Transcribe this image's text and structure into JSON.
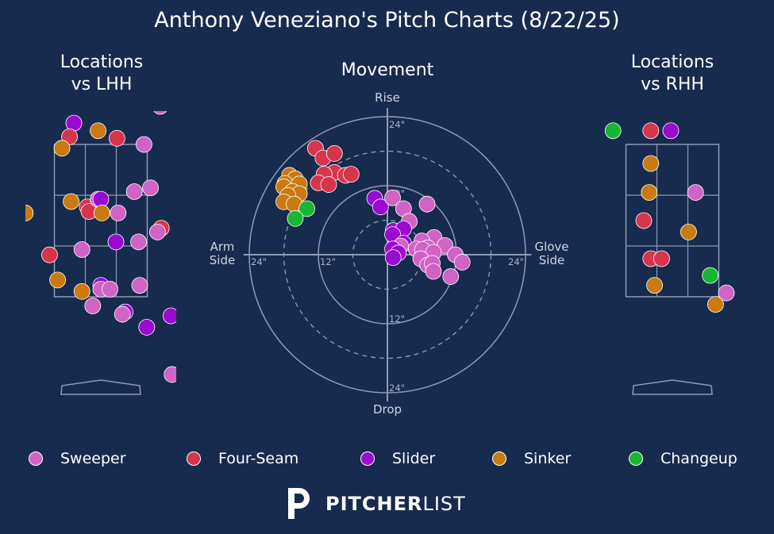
{
  "title": "Anthony Veneziano's Pitch Charts (8/22/25)",
  "colors": {
    "background": "#172b4e",
    "Sweeper": "#d063c4",
    "Four-Seam": "#d7344e",
    "Slider": "#9a0ad1",
    "Sinker": "#c97a10",
    "Changeup": "#17b634"
  },
  "legend": [
    "Sweeper",
    "Four-Seam",
    "Slider",
    "Sinker",
    "Changeup"
  ],
  "logo": {
    "bold": "PITCHER",
    "light": "LIST"
  },
  "chart_data": [
    {
      "type": "scatter",
      "title": "Locations\nvs LHH",
      "description_of_units": "plate x / plate z estimated, feet",
      "points": [
        {
          "pitch": "Sinker",
          "x": -0.72,
          "z": 4.08
        },
        {
          "pitch": "Sweeper",
          "x": -0.69,
          "z": 4.05
        },
        {
          "pitch": "Slider",
          "x": -0.5,
          "z": 3.78
        },
        {
          "pitch": "Four-Seam",
          "x": -0.58,
          "z": 3.6
        },
        {
          "pitch": "Sinker",
          "x": -0.72,
          "z": 3.45
        },
        {
          "pitch": "Sinker",
          "x": -0.05,
          "z": 3.68
        },
        {
          "pitch": "Four-Seam",
          "x": 0.3,
          "z": 3.58
        },
        {
          "pitch": "Sweeper",
          "x": 1.1,
          "z": 4.0
        },
        {
          "pitch": "Sweeper",
          "x": 0.8,
          "z": 3.5
        },
        {
          "pitch": "Sweeper",
          "x": 0.92,
          "z": 2.93
        },
        {
          "pitch": "Sweeper",
          "x": 0.62,
          "z": 2.88
        },
        {
          "pitch": "Sinker",
          "x": -1.4,
          "z": 2.6
        },
        {
          "pitch": "Sinker",
          "x": -0.55,
          "z": 2.75
        },
        {
          "pitch": "Four-Seam",
          "x": -0.25,
          "z": 2.68
        },
        {
          "pitch": "Four-Seam",
          "x": -0.22,
          "z": 2.62
        },
        {
          "pitch": "Sweeper",
          "x": -0.05,
          "z": 2.78
        },
        {
          "pitch": "Slider",
          "x": 0.0,
          "z": 2.78
        },
        {
          "pitch": "Sinker",
          "x": 0.02,
          "z": 2.6
        },
        {
          "pitch": "Sweeper",
          "x": 0.32,
          "z": 2.6
        },
        {
          "pitch": "Four-Seam",
          "x": 1.12,
          "z": 2.4
        },
        {
          "pitch": "Sweeper",
          "x": 1.05,
          "z": 2.35
        },
        {
          "pitch": "Slider",
          "x": 0.28,
          "z": 2.22
        },
        {
          "pitch": "Sweeper",
          "x": 0.7,
          "z": 2.22
        },
        {
          "pitch": "Sweeper",
          "x": -0.35,
          "z": 2.12
        },
        {
          "pitch": "Four-Seam",
          "x": -0.95,
          "z": 2.05
        },
        {
          "pitch": "Sinker",
          "x": -0.8,
          "z": 1.72
        },
        {
          "pitch": "Slider",
          "x": 0.0,
          "z": 1.65
        },
        {
          "pitch": "Sweeper",
          "x": 0.0,
          "z": 1.6
        },
        {
          "pitch": "Sweeper",
          "x": 0.17,
          "z": 1.6
        },
        {
          "pitch": "Sweeper",
          "x": 0.72,
          "z": 1.65
        },
        {
          "pitch": "Sinker",
          "x": -0.35,
          "z": 1.57
        },
        {
          "pitch": "Sweeper",
          "x": -0.15,
          "z": 1.38
        },
        {
          "pitch": "Slider",
          "x": 0.45,
          "z": 1.3
        },
        {
          "pitch": "Sweeper",
          "x": 0.4,
          "z": 1.27
        },
        {
          "pitch": "Slider",
          "x": 0.85,
          "z": 1.1
        },
        {
          "pitch": "Slider",
          "x": 1.3,
          "z": 1.25
        },
        {
          "pitch": "Sweeper",
          "x": 1.32,
          "z": 0.48
        }
      ]
    },
    {
      "type": "scatter",
      "title": "Movement",
      "xlabel": "Arm\nSide",
      "xlabel_right": "Glove\nSide",
      "ylabel_top": "Rise",
      "ylabel_bottom": "Drop",
      "rings": [
        "12\"",
        "24\""
      ],
      "description_of_units": "horizontal / induced vertical break, inches (glove side positive)",
      "points": [
        {
          "pitch": "Four-Seam",
          "hb": -12.5,
          "ivb": 18.5
        },
        {
          "pitch": "Four-Seam",
          "hb": -11.2,
          "ivb": 16.8
        },
        {
          "pitch": "Four-Seam",
          "hb": -9.2,
          "ivb": 17.6
        },
        {
          "pitch": "Four-Seam",
          "hb": -9.2,
          "ivb": 14.3
        },
        {
          "pitch": "Four-Seam",
          "hb": -7.3,
          "ivb": 13.8
        },
        {
          "pitch": "Four-Seam",
          "hb": -6.3,
          "ivb": 14.0
        },
        {
          "pitch": "Four-Seam",
          "hb": -11.0,
          "ivb": 14.0
        },
        {
          "pitch": "Four-Seam",
          "hb": -12.0,
          "ivb": 12.5
        },
        {
          "pitch": "Four-Seam",
          "hb": -10.2,
          "ivb": 12.2
        },
        {
          "pitch": "Sinker",
          "hb": -17.0,
          "ivb": 13.8
        },
        {
          "pitch": "Sinker",
          "hb": -16.0,
          "ivb": 13.2
        },
        {
          "pitch": "Sinker",
          "hb": -17.8,
          "ivb": 12.4
        },
        {
          "pitch": "Sinker",
          "hb": -15.3,
          "ivb": 12.3
        },
        {
          "pitch": "Sinker",
          "hb": -18.0,
          "ivb": 11.8
        },
        {
          "pitch": "Sinker",
          "hb": -16.5,
          "ivb": 11.0
        },
        {
          "pitch": "Sinker",
          "hb": -15.3,
          "ivb": 10.6
        },
        {
          "pitch": "Sinker",
          "hb": -17.3,
          "ivb": 10.3
        },
        {
          "pitch": "Sinker",
          "hb": -18.0,
          "ivb": 9.2
        },
        {
          "pitch": "Sinker",
          "hb": -16.2,
          "ivb": 8.8
        },
        {
          "pitch": "Changeup",
          "hb": -14.0,
          "ivb": 8.0
        },
        {
          "pitch": "Changeup",
          "hb": -16.0,
          "ivb": 6.3
        },
        {
          "pitch": "Slider",
          "hb": -2.2,
          "ivb": 9.8
        },
        {
          "pitch": "Slider",
          "hb": -1.2,
          "ivb": 8.3
        },
        {
          "pitch": "Sweeper",
          "hb": 0.9,
          "ivb": 9.9
        },
        {
          "pitch": "Sweeper",
          "hb": 2.8,
          "ivb": 8.0
        },
        {
          "pitch": "Sweeper",
          "hb": 6.9,
          "ivb": 8.8
        },
        {
          "pitch": "Sweeper",
          "hb": 3.8,
          "ivb": 5.8
        },
        {
          "pitch": "Slider",
          "hb": 1.0,
          "ivb": 4.2
        },
        {
          "pitch": "Slider",
          "hb": 2.8,
          "ivb": 4.5
        },
        {
          "pitch": "Slider",
          "hb": 0.9,
          "ivb": 3.5
        },
        {
          "pitch": "Slider",
          "hb": 2.8,
          "ivb": 2.0
        },
        {
          "pitch": "Sweeper",
          "hb": 2.3,
          "ivb": 1.5
        },
        {
          "pitch": "Slider",
          "hb": 0.9,
          "ivb": 1.0
        },
        {
          "pitch": "Slider",
          "hb": 1.9,
          "ivb": 0.3
        },
        {
          "pitch": "Slider",
          "hb": 1.0,
          "ivb": -0.5
        },
        {
          "pitch": "Sweeper",
          "hb": 8.1,
          "ivb": 3.0
        },
        {
          "pitch": "Sweeper",
          "hb": 6.0,
          "ivb": 2.4
        },
        {
          "pitch": "Sweeper",
          "hb": 10.0,
          "ivb": 1.6
        },
        {
          "pitch": "Sweeper",
          "hb": 7.0,
          "ivb": 1.2
        },
        {
          "pitch": "Sweeper",
          "hb": 5.0,
          "ivb": 1.0
        },
        {
          "pitch": "Sweeper",
          "hb": 6.1,
          "ivb": 0.9
        },
        {
          "pitch": "Sweeper",
          "hb": 8.0,
          "ivb": 0.4
        },
        {
          "pitch": "Sweeper",
          "hb": 11.8,
          "ivb": 0.0
        },
        {
          "pitch": "Sweeper",
          "hb": 13.0,
          "ivb": -1.3
        },
        {
          "pitch": "Sweeper",
          "hb": 5.8,
          "ivb": -0.7
        },
        {
          "pitch": "Sweeper",
          "hb": 7.0,
          "ivb": -1.8
        },
        {
          "pitch": "Sweeper",
          "hb": 7.8,
          "ivb": -1.5
        },
        {
          "pitch": "Sweeper",
          "hb": 8.0,
          "ivb": -2.9
        },
        {
          "pitch": "Sweeper",
          "hb": 11.0,
          "ivb": -3.8
        }
      ]
    },
    {
      "type": "scatter",
      "title": "Locations\nvs RHH",
      "description_of_units": "plate x / plate z estimated, feet",
      "points": [
        {
          "pitch": "Changeup",
          "x": 0.55,
          "z": 4.9
        },
        {
          "pitch": "Slider",
          "x": 0.62,
          "z": 4.76
        },
        {
          "pitch": "Sweeper",
          "x": 0.95,
          "z": 4.3
        },
        {
          "pitch": "Changeup",
          "x": -1.1,
          "z": 3.68
        },
        {
          "pitch": "Four-Seam",
          "x": -0.4,
          "z": 3.68
        },
        {
          "pitch": "Slider",
          "x": -0.03,
          "z": 3.68
        },
        {
          "pitch": "Sinker",
          "x": -0.4,
          "z": 3.25
        },
        {
          "pitch": "Sinker",
          "x": -0.43,
          "z": 2.87
        },
        {
          "pitch": "Sweeper",
          "x": 0.43,
          "z": 2.87
        },
        {
          "pitch": "Four-Seam",
          "x": -0.53,
          "z": 2.5
        },
        {
          "pitch": "Sinker",
          "x": 0.3,
          "z": 2.35
        },
        {
          "pitch": "Four-Seam",
          "x": -0.4,
          "z": 2.0
        },
        {
          "pitch": "Four-Seam",
          "x": -0.2,
          "z": 2.0
        },
        {
          "pitch": "Changeup",
          "x": 0.7,
          "z": 1.78
        },
        {
          "pitch": "Sinker",
          "x": -0.33,
          "z": 1.65
        },
        {
          "pitch": "Sweeper",
          "x": 1.0,
          "z": 1.55
        },
        {
          "pitch": "Sinker",
          "x": 0.8,
          "z": 1.4
        }
      ]
    }
  ]
}
